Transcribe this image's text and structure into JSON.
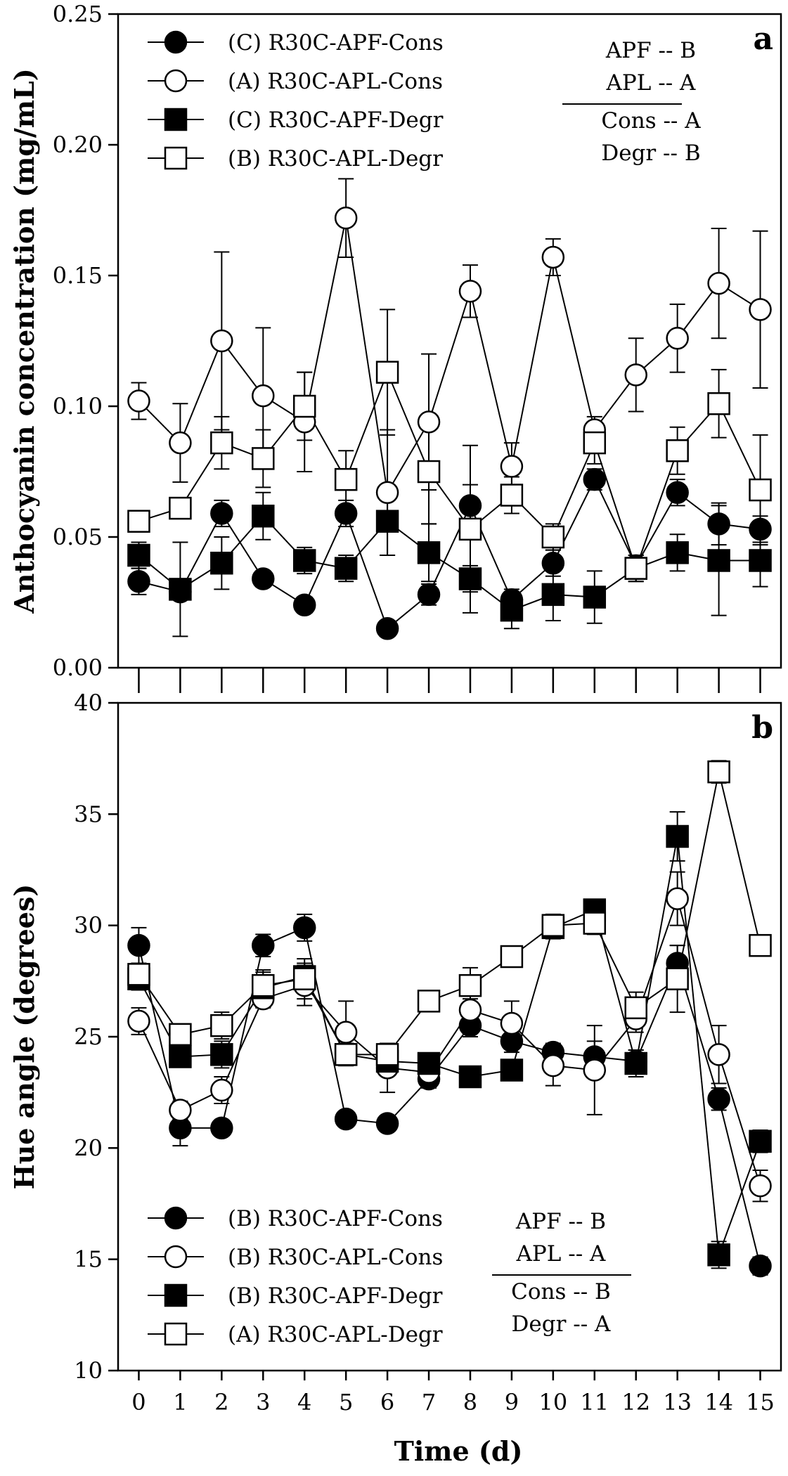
{
  "x_axis": {
    "label": "Time (d)",
    "ticks": [
      0,
      1,
      2,
      3,
      4,
      5,
      6,
      7,
      8,
      9,
      10,
      11,
      12,
      13,
      14,
      15
    ],
    "range": [
      -0.5,
      15.5
    ]
  },
  "chart_data": [
    {
      "type": "line",
      "panel": "a",
      "ylabel": "Anthocyanin concentration (mg/mL)",
      "xlabel": "Time (d)",
      "ylim": [
        0,
        0.25
      ],
      "y_ticks": [
        "0.00",
        "0.05",
        "0.10",
        "0.15",
        "0.20",
        "0.25"
      ],
      "x": [
        0,
        1,
        2,
        3,
        4,
        5,
        6,
        7,
        8,
        9,
        10,
        11,
        12,
        13,
        14,
        15
      ],
      "legend_position": "top-left",
      "series": [
        {
          "name": "(C) R30C-APF-Cons",
          "marker": "filled-circle",
          "values": [
            0.033,
            0.029,
            0.059,
            0.034,
            0.024,
            0.059,
            0.015,
            0.028,
            0.062,
            0.026,
            0.04,
            0.072,
            0.039,
            0.067,
            0.055,
            0.053
          ],
          "errors": [
            0.005,
            0.003,
            0.005,
            0.003,
            0.003,
            0.005,
            0.003,
            0.004,
            0.008,
            0.004,
            0.005,
            0.004,
            0.004,
            0.005,
            0.008,
            0.005
          ]
        },
        {
          "name": "(A) R30C-APL-Cons",
          "marker": "open-circle",
          "values": [
            0.102,
            0.086,
            0.125,
            0.104,
            0.094,
            0.172,
            0.067,
            0.094,
            0.144,
            0.077,
            0.157,
            0.091,
            0.112,
            0.126,
            0.147,
            0.137
          ],
          "errors": [
            0.007,
            0.015,
            0.034,
            0.026,
            0.019,
            0.015,
            0.024,
            0.026,
            0.01,
            0.009,
            0.007,
            0.005,
            0.014,
            0.013,
            0.021,
            0.03
          ]
        },
        {
          "name": "(C) R30C-APF-Degr",
          "marker": "filled-square",
          "values": [
            0.043,
            0.03,
            0.04,
            0.058,
            0.041,
            0.038,
            0.056,
            0.044,
            0.034,
            0.022,
            0.028,
            0.027,
            0.038,
            0.044,
            0.041,
            0.041
          ],
          "errors": [
            0.005,
            0.018,
            0.01,
            0.009,
            0.005,
            0.005,
            0.013,
            0.011,
            0.005,
            0.007,
            0.01,
            0.01,
            0.005,
            0.007,
            0.021,
            0.01
          ]
        },
        {
          "name": "(B) R30C-APL-Degr",
          "marker": "open-square",
          "values": [
            0.056,
            0.061,
            0.086,
            0.08,
            0.1,
            0.072,
            0.113,
            0.075,
            0.053,
            0.066,
            0.05,
            0.086,
            0.038,
            0.083,
            0.101,
            0.068
          ],
          "errors": [
            0.004,
            0.004,
            0.01,
            0.011,
            0.013,
            0.011,
            0.024,
            0.02,
            0.032,
            0.007,
            0.005,
            0.008,
            0.005,
            0.009,
            0.013,
            0.021
          ]
        }
      ],
      "significance": {
        "position": "top-right",
        "top_lines": [
          "APF -- B",
          "APL -- A"
        ],
        "bottom_lines": [
          "Cons -- A",
          "Degr --  B"
        ]
      }
    },
    {
      "type": "line",
      "panel": "b",
      "ylabel": "Hue angle (degrees)",
      "xlabel": "Time (d)",
      "ylim": [
        10,
        40
      ],
      "y_ticks": [
        "10",
        "15",
        "20",
        "25",
        "30",
        "35",
        "40"
      ],
      "x": [
        0,
        1,
        2,
        3,
        4,
        5,
        6,
        7,
        8,
        9,
        10,
        11,
        12,
        13,
        14,
        15
      ],
      "legend_position": "bottom-left",
      "series": [
        {
          "name": "(B) R30C-APF-Cons",
          "marker": "filled-circle",
          "values": [
            29.1,
            20.9,
            20.9,
            29.1,
            29.9,
            21.3,
            21.1,
            23.1,
            25.5,
            24.8,
            24.3,
            24.1,
            23.9,
            28.3,
            22.2,
            14.7
          ],
          "errors": [
            0.8,
            0.8,
            0.3,
            0.5,
            0.6,
            0.3,
            0.3,
            0.4,
            0.5,
            0.5,
            0.4,
            0.7,
            0.5,
            0.8,
            0.5,
            0.4
          ]
        },
        {
          "name": "(B) R30C-APL-Cons",
          "marker": "open-circle",
          "values": [
            25.7,
            21.7,
            22.6,
            26.7,
            27.3,
            25.2,
            23.6,
            23.4,
            26.2,
            25.6,
            23.7,
            23.5,
            25.8,
            31.2,
            24.2,
            18.3
          ],
          "errors": [
            0.6,
            0.4,
            0.6,
            0.4,
            0.9,
            1.4,
            1.1,
            0.5,
            0.5,
            1.0,
            0.9,
            2.0,
            0.6,
            1.2,
            1.3,
            0.7
          ]
        },
        {
          "name": "(B) R30C-APF-Degr",
          "marker": "filled-square",
          "values": [
            27.6,
            24.1,
            24.2,
            27.2,
            27.7,
            24.2,
            23.9,
            23.8,
            23.2,
            23.5,
            29.9,
            30.7,
            23.8,
            34.0,
            15.2,
            20.3
          ],
          "errors": [
            0.5,
            0.4,
            0.6,
            0.8,
            0.6,
            0.5,
            0.4,
            0.4,
            0.3,
            0.3,
            0.5,
            0.4,
            0.6,
            1.1,
            0.6,
            0.5
          ]
        },
        {
          "name": "(A) R30C-APL-Degr",
          "marker": "open-square",
          "values": [
            27.8,
            25.1,
            25.5,
            27.3,
            27.6,
            24.2,
            24.2,
            26.6,
            27.3,
            28.6,
            30.0,
            30.1,
            26.3,
            27.6,
            36.9,
            29.1
          ],
          "errors": [
            0.5,
            0.4,
            0.6,
            0.6,
            0.9,
            0.5,
            0.4,
            0.4,
            0.8,
            0.4,
            0.5,
            0.5,
            0.7,
            1.5,
            0.5,
            0.4
          ]
        }
      ],
      "significance": {
        "position": "bottom-center",
        "top_lines": [
          "APF -- B",
          "APL -- A"
        ],
        "bottom_lines": [
          "Cons -- B",
          "Degr --  A"
        ]
      }
    }
  ]
}
